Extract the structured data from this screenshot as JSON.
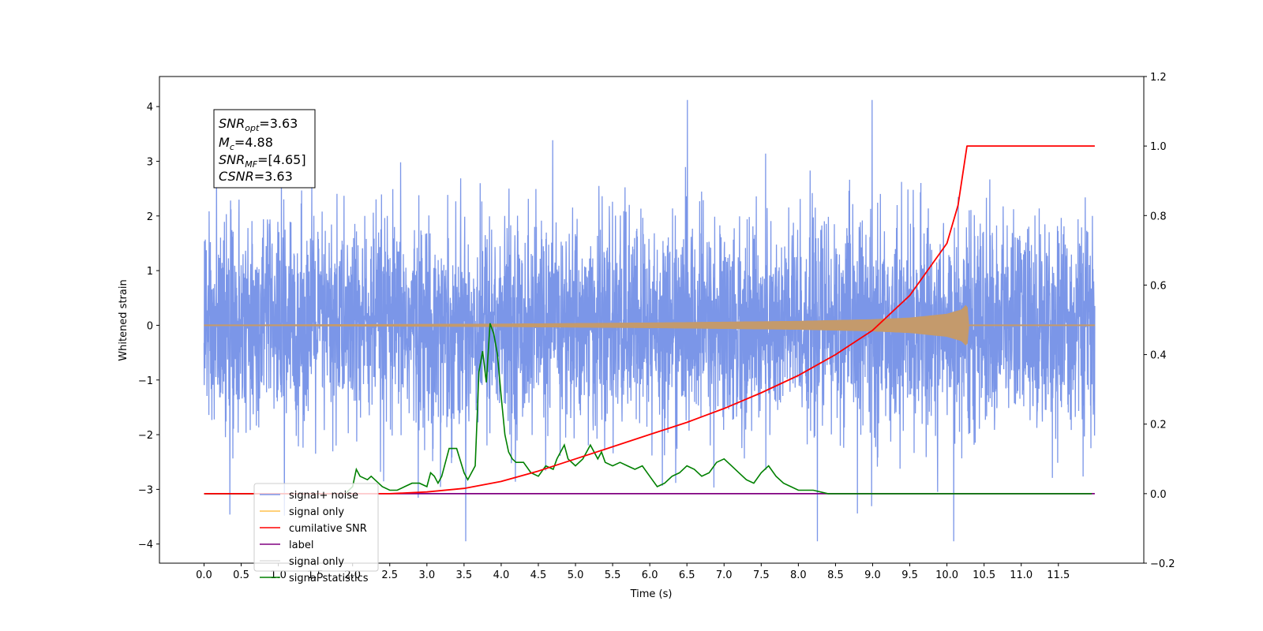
{
  "chart_data": {
    "type": "line",
    "xlabel": "Time (s)",
    "ylabel": "Whitened strain",
    "xlim": [
      -0.6,
      12.65
    ],
    "ylim": [
      -4.35,
      4.55
    ],
    "y2lim": [
      -0.2,
      1.2
    ],
    "xticks": [
      "0.0",
      "0.5",
      "1.0",
      "1.5",
      "2.0",
      "2.5",
      "3.0",
      "3.5",
      "4.0",
      "4.5",
      "5.0",
      "5.5",
      "6.0",
      "6.5",
      "7.0",
      "7.5",
      "8.0",
      "8.5",
      "9.0",
      "9.5",
      "10.0",
      "10.5",
      "11.0",
      "11.5"
    ],
    "yticks": [
      "−4",
      "−3",
      "−2",
      "−1",
      "0",
      "1",
      "2",
      "3",
      "4"
    ],
    "y2ticks": [
      "−0.2",
      "0.0",
      "0.2",
      "0.4",
      "0.6",
      "0.8",
      "1.0",
      "1.2"
    ],
    "annotations": {
      "snr_opt": "=3.63",
      "mc": "=4.88",
      "snr_mf": "=[4.65]",
      "csnr": "=3.63"
    },
    "legend": {
      "placement": "lower-left",
      "entries": [
        {
          "label": "signal+ noise",
          "color": "#7b96e8"
        },
        {
          "label": "signal only",
          "color": "#ffc04d"
        },
        {
          "label": "cumilative SNR",
          "color": "#ff0000"
        },
        {
          "label": "label",
          "color": "#800080"
        },
        {
          "label": "signal only",
          "color": "#dddddd"
        },
        {
          "label": "signal statistics",
          "color": "#008000"
        }
      ]
    },
    "series": [
      {
        "name": "signal+ noise",
        "axis": "left",
        "color": "#7b96e8",
        "x_range": [
          0.0,
          11.99
        ],
        "description_level": "noise, approx amplitude ±2.5, peaks to ±4.1"
      },
      {
        "name": "signal only",
        "axis": "left",
        "color": "#c49a6c",
        "x_range": [
          0.0,
          11.99
        ],
        "envelope": {
          "x": [
            0.0,
            2.0,
            4.0,
            6.0,
            8.0,
            9.0,
            9.5,
            10.0,
            10.2,
            10.27,
            10.28,
            11.99
          ],
          "amp": [
            0.0,
            0.01,
            0.02,
            0.04,
            0.07,
            0.1,
            0.13,
            0.2,
            0.28,
            0.38,
            0.0,
            0.0
          ]
        }
      },
      {
        "name": "cumilative SNR",
        "axis": "right",
        "color": "#ff0000",
        "x": [
          0.0,
          2.0,
          2.5,
          3.0,
          3.5,
          4.0,
          4.5,
          5.0,
          5.5,
          6.0,
          6.5,
          7.0,
          7.5,
          8.0,
          8.5,
          9.0,
          9.5,
          10.0,
          10.15,
          10.27,
          11.99
        ],
        "y": [
          0.0,
          0.0,
          0.0,
          0.005,
          0.015,
          0.035,
          0.065,
          0.1,
          0.135,
          0.17,
          0.205,
          0.245,
          0.29,
          0.34,
          0.4,
          0.47,
          0.57,
          0.72,
          0.83,
          1.0,
          1.0
        ]
      },
      {
        "name": "label",
        "axis": "right",
        "color": "#800080",
        "x": [
          0.0,
          11.99
        ],
        "y": [
          0.0,
          0.0
        ]
      },
      {
        "name": "signal statistics",
        "axis": "right",
        "color": "#008000",
        "x": [
          0.0,
          1.9,
          2.0,
          2.05,
          2.1,
          2.2,
          2.25,
          2.3,
          2.4,
          2.5,
          2.6,
          2.7,
          2.8,
          2.9,
          3.0,
          3.05,
          3.1,
          3.15,
          3.2,
          3.3,
          3.4,
          3.5,
          3.55,
          3.6,
          3.65,
          3.7,
          3.75,
          3.8,
          3.85,
          3.9,
          3.95,
          4.0,
          4.05,
          4.1,
          4.15,
          4.2,
          4.3,
          4.4,
          4.5,
          4.6,
          4.7,
          4.75,
          4.8,
          4.85,
          4.9,
          5.0,
          5.1,
          5.2,
          5.3,
          5.35,
          5.4,
          5.5,
          5.6,
          5.7,
          5.8,
          5.9,
          6.0,
          6.1,
          6.2,
          6.3,
          6.4,
          6.5,
          6.6,
          6.7,
          6.8,
          6.9,
          7.0,
          7.1,
          7.2,
          7.3,
          7.4,
          7.5,
          7.6,
          7.7,
          7.8,
          7.9,
          8.0,
          8.2,
          8.4,
          8.6,
          9.0,
          9.5,
          9.8,
          10.0,
          10.2,
          11.95
        ],
        "y": [
          0.0,
          0.0,
          0.02,
          0.07,
          0.05,
          0.04,
          0.05,
          0.04,
          0.02,
          0.01,
          0.01,
          0.02,
          0.03,
          0.03,
          0.02,
          0.06,
          0.05,
          0.03,
          0.05,
          0.13,
          0.13,
          0.06,
          0.04,
          0.06,
          0.08,
          0.35,
          0.41,
          0.32,
          0.49,
          0.46,
          0.4,
          0.28,
          0.17,
          0.12,
          0.1,
          0.09,
          0.09,
          0.06,
          0.05,
          0.08,
          0.07,
          0.1,
          0.12,
          0.14,
          0.1,
          0.08,
          0.1,
          0.14,
          0.1,
          0.12,
          0.09,
          0.08,
          0.09,
          0.08,
          0.07,
          0.08,
          0.05,
          0.02,
          0.03,
          0.05,
          0.06,
          0.08,
          0.07,
          0.05,
          0.06,
          0.09,
          0.1,
          0.08,
          0.06,
          0.04,
          0.03,
          0.06,
          0.08,
          0.05,
          0.03,
          0.02,
          0.01,
          0.01,
          0.0,
          0.0,
          0.0,
          0.0,
          0.0,
          0.0,
          0.0,
          0.0
        ]
      }
    ]
  }
}
